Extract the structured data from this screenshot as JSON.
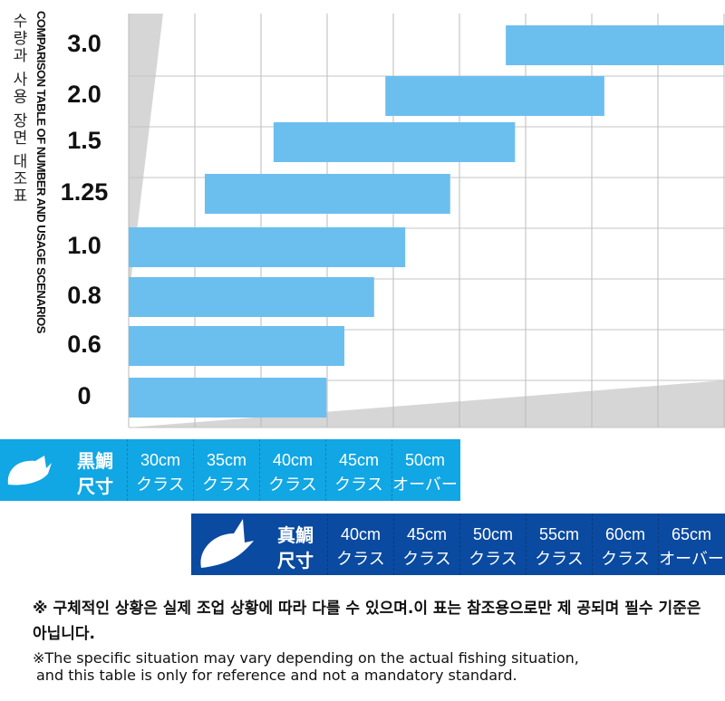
{
  "title_ko": "수량과 사용 장면 대조표",
  "title_en": "COMPARISON TABLE OF NUMBER AND USAGE SCENARIOS",
  "chart_data": {
    "type": "bar",
    "orientation": "horizontal-range",
    "categories": [
      "3.0",
      "2.0",
      "1.5",
      "1.25",
      "1.0",
      "0.8",
      "0.6",
      "0"
    ],
    "ranges_in_columns": [
      [
        5.7,
        9.0
      ],
      [
        3.88,
        7.19
      ],
      [
        2.19,
        5.84
      ],
      [
        1.15,
        4.86
      ],
      [
        0,
        4.18
      ],
      [
        0,
        3.71
      ],
      [
        0,
        3.26
      ],
      [
        0,
        2.99
      ]
    ],
    "xlim": [
      0,
      9
    ],
    "grid": true,
    "bar_color": "#6bbfef"
  },
  "black_bream": {
    "title": [
      "黒鯛",
      "尺寸"
    ],
    "color": "#11a6e4",
    "cells": [
      [
        "30cm",
        "クラス"
      ],
      [
        "35cm",
        "クラス"
      ],
      [
        "40cm",
        "クラス"
      ],
      [
        "45cm",
        "クラス"
      ],
      [
        "50cm",
        "オーバー"
      ]
    ]
  },
  "red_bream": {
    "title": [
      "真鯛",
      "尺寸"
    ],
    "color": "#0a4aa0",
    "cells": [
      [
        "40cm",
        "クラス"
      ],
      [
        "45cm",
        "クラス"
      ],
      [
        "50cm",
        "クラス"
      ],
      [
        "55cm",
        "クラス"
      ],
      [
        "60cm",
        "クラス"
      ],
      [
        "65cm",
        "オーバー"
      ]
    ]
  },
  "notes": {
    "ko": "※ 구체적인 상황은 실제 조업 상황에 따라 다를 수 있으며.이 표는 참조용으로만 제 공되며 필수 기준은 아닙니다.",
    "en1": "※The specific situation may vary depending on the actual fishing situation,",
    "en2": "and this table is only for reference and not a mandatory standard."
  }
}
